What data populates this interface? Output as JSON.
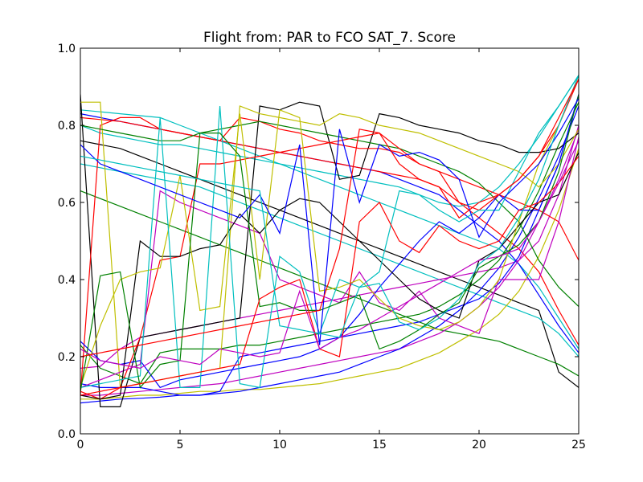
{
  "chart_data": {
    "type": "line",
    "title": "Flight from: PAR to FCO  SAT_7. Score",
    "xlabel": "",
    "ylabel": "",
    "xlim": [
      0,
      25
    ],
    "ylim": [
      0.0,
      1.0
    ],
    "grid": false,
    "x_ticks": [
      "0",
      "5",
      "10",
      "15",
      "20",
      "25"
    ],
    "y_ticks": [
      "0.0",
      "0.2",
      "0.4",
      "0.6",
      "0.8",
      "1.0"
    ],
    "x": [
      0,
      1,
      2,
      3,
      4,
      5,
      6,
      7,
      8,
      9,
      10,
      11,
      12,
      13,
      14,
      15,
      16,
      17,
      18,
      19,
      20,
      21,
      22,
      23,
      24,
      25
    ],
    "colors": [
      "#0000ff",
      "#008000",
      "#ff0000",
      "#00bfbf",
      "#bf00bf",
      "#bfbf00",
      "#000000"
    ],
    "series": [
      {
        "color": "#000000",
        "values": [
          0.76,
          0.75,
          0.74,
          0.72,
          0.7,
          0.68,
          0.66,
          0.64,
          0.62,
          0.6,
          0.58,
          0.56,
          0.54,
          0.52,
          0.5,
          0.48,
          0.46,
          0.44,
          0.42,
          0.4,
          0.38,
          0.36,
          0.34,
          0.32,
          0.16,
          0.12
        ]
      },
      {
        "color": "#00bfbf",
        "values": [
          0.84,
          0.835,
          0.83,
          0.825,
          0.82,
          0.8,
          0.78,
          0.76,
          0.74,
          0.72,
          0.7,
          0.68,
          0.66,
          0.64,
          0.62,
          0.6,
          0.58,
          0.56,
          0.54,
          0.52,
          0.5,
          0.48,
          0.44,
          0.38,
          0.3,
          0.22
        ]
      },
      {
        "color": "#0000ff",
        "values": [
          0.83,
          0.82,
          0.81,
          0.8,
          0.79,
          0.78,
          0.77,
          0.76,
          0.75,
          0.74,
          0.73,
          0.72,
          0.71,
          0.7,
          0.69,
          0.68,
          0.66,
          0.64,
          0.62,
          0.58,
          0.54,
          0.5,
          0.44,
          0.36,
          0.28,
          0.21
        ]
      },
      {
        "color": "#ff0000",
        "values": [
          0.82,
          0.815,
          0.81,
          0.8,
          0.79,
          0.78,
          0.77,
          0.76,
          0.75,
          0.74,
          0.73,
          0.72,
          0.71,
          0.7,
          0.69,
          0.68,
          0.67,
          0.66,
          0.64,
          0.6,
          0.56,
          0.52,
          0.48,
          0.42,
          0.32,
          0.23
        ]
      },
      {
        "color": "#008000",
        "values": [
          0.63,
          0.61,
          0.59,
          0.57,
          0.55,
          0.53,
          0.51,
          0.49,
          0.47,
          0.45,
          0.43,
          0.41,
          0.39,
          0.37,
          0.35,
          0.33,
          0.31,
          0.29,
          0.27,
          0.26,
          0.25,
          0.24,
          0.22,
          0.2,
          0.18,
          0.15
        ]
      },
      {
        "color": "#00bfbf",
        "values": [
          0.7,
          0.69,
          0.68,
          0.67,
          0.66,
          0.65,
          0.64,
          0.62,
          0.6,
          0.58,
          0.56,
          0.54,
          0.52,
          0.5,
          0.48,
          0.46,
          0.44,
          0.42,
          0.4,
          0.38,
          0.36,
          0.34,
          0.32,
          0.3,
          0.26,
          0.2
        ]
      },
      {
        "color": "#bf00bf",
        "values": [
          0.1,
          0.1,
          0.105,
          0.11,
          0.115,
          0.12,
          0.125,
          0.13,
          0.14,
          0.15,
          0.16,
          0.17,
          0.18,
          0.19,
          0.2,
          0.21,
          0.22,
          0.24,
          0.26,
          0.29,
          0.33,
          0.38,
          0.45,
          0.55,
          0.66,
          0.79
        ]
      },
      {
        "color": "#bfbf00",
        "values": [
          0.09,
          0.09,
          0.095,
          0.1,
          0.1,
          0.105,
          0.11,
          0.11,
          0.115,
          0.115,
          0.12,
          0.125,
          0.13,
          0.14,
          0.15,
          0.16,
          0.17,
          0.19,
          0.21,
          0.24,
          0.27,
          0.31,
          0.37,
          0.46,
          0.58,
          0.74
        ]
      },
      {
        "color": "#0000ff",
        "values": [
          0.08,
          0.085,
          0.09,
          0.092,
          0.095,
          0.1,
          0.1,
          0.105,
          0.11,
          0.12,
          0.13,
          0.14,
          0.15,
          0.16,
          0.18,
          0.2,
          0.22,
          0.25,
          0.28,
          0.32,
          0.37,
          0.43,
          0.51,
          0.61,
          0.72,
          0.85
        ]
      },
      {
        "color": "#bf00bf",
        "values": [
          0.17,
          0.175,
          0.22,
          0.25,
          0.26,
          0.27,
          0.28,
          0.29,
          0.3,
          0.31,
          0.32,
          0.33,
          0.34,
          0.35,
          0.36,
          0.37,
          0.38,
          0.39,
          0.4,
          0.41,
          0.42,
          0.43,
          0.45,
          0.5,
          0.62,
          0.8
        ]
      },
      {
        "color": "#0000ff",
        "values": [
          0.13,
          0.12,
          0.12,
          0.12,
          0.11,
          0.1,
          0.1,
          0.11,
          0.2,
          0.21,
          0.22,
          0.23,
          0.24,
          0.25,
          0.26,
          0.27,
          0.28,
          0.29,
          0.31,
          0.33,
          0.35,
          0.39,
          0.46,
          0.58,
          0.7,
          0.88
        ]
      },
      {
        "color": "#008000",
        "values": [
          0.23,
          0.17,
          0.15,
          0.13,
          0.21,
          0.22,
          0.22,
          0.22,
          0.23,
          0.23,
          0.24,
          0.25,
          0.26,
          0.27,
          0.28,
          0.29,
          0.3,
          0.31,
          0.33,
          0.36,
          0.4,
          0.45,
          0.53,
          0.63,
          0.75,
          0.86
        ]
      },
      {
        "color": "#00bfbf",
        "values": [
          0.8,
          0.78,
          0.77,
          0.76,
          0.75,
          0.75,
          0.74,
          0.73,
          0.72,
          0.71,
          0.7,
          0.69,
          0.68,
          0.67,
          0.66,
          0.65,
          0.64,
          0.62,
          0.6,
          0.59,
          0.6,
          0.64,
          0.7,
          0.77,
          0.85,
          0.93
        ]
      },
      {
        "color": "#000000",
        "values": [
          0.88,
          0.07,
          0.07,
          0.25,
          0.26,
          0.27,
          0.28,
          0.29,
          0.3,
          0.85,
          0.84,
          0.86,
          0.85,
          0.66,
          0.67,
          0.83,
          0.82,
          0.8,
          0.79,
          0.78,
          0.76,
          0.75,
          0.73,
          0.73,
          0.74,
          0.78
        ]
      },
      {
        "color": "#ff0000",
        "values": [
          0.1,
          0.8,
          0.82,
          0.82,
          0.79,
          0.78,
          0.77,
          0.76,
          0.82,
          0.81,
          0.79,
          0.78,
          0.76,
          0.75,
          0.74,
          0.74,
          0.73,
          0.7,
          0.68,
          0.66,
          0.64,
          0.62,
          0.6,
          0.58,
          0.55,
          0.45
        ]
      },
      {
        "color": "#bfbf00",
        "values": [
          0.86,
          0.86,
          0.12,
          0.13,
          0.14,
          0.15,
          0.16,
          0.17,
          0.85,
          0.83,
          0.82,
          0.81,
          0.8,
          0.83,
          0.82,
          0.8,
          0.79,
          0.78,
          0.76,
          0.74,
          0.72,
          0.7,
          0.68,
          0.64,
          0.7,
          0.79
        ]
      },
      {
        "color": "#008000",
        "values": [
          0.8,
          0.79,
          0.78,
          0.77,
          0.76,
          0.76,
          0.78,
          0.79,
          0.8,
          0.81,
          0.8,
          0.79,
          0.78,
          0.77,
          0.76,
          0.75,
          0.74,
          0.72,
          0.7,
          0.68,
          0.65,
          0.6,
          0.55,
          0.45,
          0.38,
          0.33
        ]
      },
      {
        "color": "#0000ff",
        "values": [
          0.24,
          0.19,
          0.18,
          0.19,
          0.12,
          0.14,
          0.15,
          0.16,
          0.17,
          0.18,
          0.19,
          0.2,
          0.22,
          0.25,
          0.31,
          0.38,
          0.44,
          0.5,
          0.55,
          0.52,
          0.56,
          0.62,
          0.58,
          0.58,
          0.7,
          0.88
        ]
      },
      {
        "color": "#ff0000",
        "values": [
          0.11,
          0.09,
          0.12,
          0.25,
          0.45,
          0.46,
          0.7,
          0.7,
          0.71,
          0.72,
          0.73,
          0.74,
          0.75,
          0.76,
          0.77,
          0.78,
          0.74,
          0.7,
          0.68,
          0.6,
          0.58,
          0.62,
          0.66,
          0.72,
          0.8,
          0.92
        ]
      },
      {
        "color": "#bf00bf",
        "values": [
          0.12,
          0.14,
          0.16,
          0.18,
          0.63,
          0.6,
          0.58,
          0.56,
          0.54,
          0.52,
          0.4,
          0.38,
          0.36,
          0.34,
          0.42,
          0.34,
          0.32,
          0.37,
          0.3,
          0.28,
          0.26,
          0.4,
          0.4,
          0.4,
          0.55,
          0.77
        ]
      },
      {
        "color": "#000000",
        "values": [
          0.1,
          0.09,
          0.1,
          0.5,
          0.46,
          0.46,
          0.48,
          0.49,
          0.57,
          0.52,
          0.58,
          0.61,
          0.6,
          0.55,
          0.5,
          0.45,
          0.4,
          0.35,
          0.32,
          0.3,
          0.45,
          0.48,
          0.54,
          0.6,
          0.62,
          0.73
        ]
      },
      {
        "color": "#bfbf00",
        "values": [
          0.12,
          0.28,
          0.4,
          0.42,
          0.43,
          0.67,
          0.32,
          0.33,
          0.83,
          0.4,
          0.84,
          0.82,
          0.37,
          0.38,
          0.4,
          0.35,
          0.3,
          0.28,
          0.27,
          0.29,
          0.33,
          0.4,
          0.55,
          0.7,
          0.8,
          0.93
        ]
      },
      {
        "color": "#00bfbf",
        "values": [
          0.12,
          0.13,
          0.14,
          0.15,
          0.82,
          0.12,
          0.12,
          0.85,
          0.13,
          0.12,
          0.46,
          0.42,
          0.26,
          0.4,
          0.38,
          0.42,
          0.63,
          0.62,
          0.58,
          0.55,
          0.58,
          0.58,
          0.68,
          0.78,
          0.85,
          0.93
        ]
      },
      {
        "color": "#008000",
        "values": [
          0.11,
          0.41,
          0.42,
          0.12,
          0.18,
          0.19,
          0.78,
          0.78,
          0.72,
          0.33,
          0.34,
          0.32,
          0.32,
          0.34,
          0.36,
          0.22,
          0.24,
          0.27,
          0.31,
          0.34,
          0.43,
          0.46,
          0.49,
          0.55,
          0.68,
          0.88
        ]
      },
      {
        "color": "#ff0000",
        "values": [
          0.1,
          0.11,
          0.12,
          0.13,
          0.14,
          0.15,
          0.16,
          0.17,
          0.18,
          0.35,
          0.38,
          0.4,
          0.22,
          0.2,
          0.55,
          0.6,
          0.5,
          0.47,
          0.54,
          0.5,
          0.48,
          0.5,
          0.58,
          0.6,
          0.65,
          0.72
        ]
      },
      {
        "color": "#0000ff",
        "values": [
          0.75,
          0.7,
          0.68,
          0.66,
          0.64,
          0.62,
          0.6,
          0.58,
          0.56,
          0.62,
          0.52,
          0.75,
          0.23,
          0.79,
          0.6,
          0.75,
          0.72,
          0.73,
          0.71,
          0.66,
          0.51,
          0.6,
          0.65,
          0.7,
          0.78,
          0.87
        ]
      },
      {
        "color": "#bf00bf",
        "values": [
          0.22,
          0.19,
          0.18,
          0.17,
          0.2,
          0.19,
          0.18,
          0.22,
          0.21,
          0.2,
          0.21,
          0.37,
          0.22,
          0.25,
          0.27,
          0.3,
          0.33,
          0.36,
          0.39,
          0.42,
          0.45,
          0.46,
          0.48,
          0.55,
          0.65,
          0.76
        ]
      },
      {
        "color": "#00bfbf",
        "values": [
          0.72,
          0.71,
          0.7,
          0.69,
          0.68,
          0.67,
          0.66,
          0.65,
          0.64,
          0.63,
          0.28,
          0.27,
          0.26,
          0.25,
          0.38,
          0.39,
          0.29,
          0.27,
          0.3,
          0.35,
          0.44,
          0.48,
          0.56,
          0.66,
          0.8,
          0.93
        ]
      },
      {
        "color": "#ff0000",
        "values": [
          0.2,
          0.21,
          0.22,
          0.23,
          0.24,
          0.25,
          0.26,
          0.27,
          0.28,
          0.29,
          0.3,
          0.31,
          0.32,
          0.48,
          0.79,
          0.78,
          0.7,
          0.66,
          0.64,
          0.56,
          0.6,
          0.62,
          0.66,
          0.72,
          0.82,
          0.92
        ]
      }
    ]
  }
}
